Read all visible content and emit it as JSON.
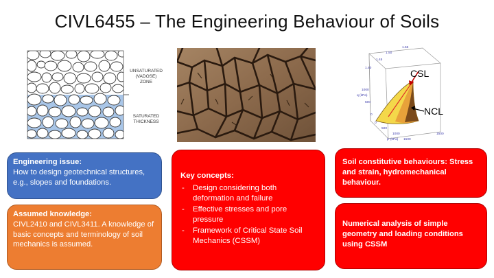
{
  "slide": {
    "title": "CIVL6455 – The Engineering Behaviour of Soils"
  },
  "soil_figure": {
    "label_unsaturated_1": "UNSATURATED",
    "label_unsaturated_2": "(VADOSE)",
    "label_unsaturated_3": "ZONE",
    "label_saturated_1": "SATURATED",
    "label_saturated_2": "THICKNESS"
  },
  "csl_plot": {
    "csl_label": "CSL",
    "ncl_label": "NCL",
    "axis_q": "q (kPa)",
    "axis_p": "p' (kPa)",
    "ticks_v": [
      "1.55",
      "1.50",
      "1.45",
      "1.40"
    ],
    "ticks_q": [
      "1000",
      "500",
      "0"
    ],
    "ticks_p": [
      "0",
      "500",
      "1000",
      "1500"
    ],
    "tick_right": "1500"
  },
  "cards": {
    "engineering_issue": {
      "head": "Engineering issue:",
      "body": "How to design geotechnical structures, e.g., slopes and foundations."
    },
    "assumed_knowledge": {
      "head": "Assumed knowledge:",
      "body": "CIVL2410 and CIVL3411. A knowledge of basic concepts and terminology of soil mechanics is assumed."
    },
    "key_concepts": {
      "head": "Key concepts:",
      "items": [
        "Design considering both deformation and failure",
        "Effective stresses and pore pressure",
        "Framework of Critical State Soil Mechanics (CSSM)"
      ]
    },
    "constitutive": {
      "text": "Soil constitutive behaviours: Stress and strain, hydromechanical behaviour."
    },
    "numerical": {
      "text": "Numerical analysis of simple geometry and loading conditions using CSSM"
    }
  },
  "colors": {
    "blue_card": "#4472C4",
    "orange_card": "#ED7D31",
    "red_card": "#FF0000",
    "saturated_water": "#A9C6E8"
  }
}
